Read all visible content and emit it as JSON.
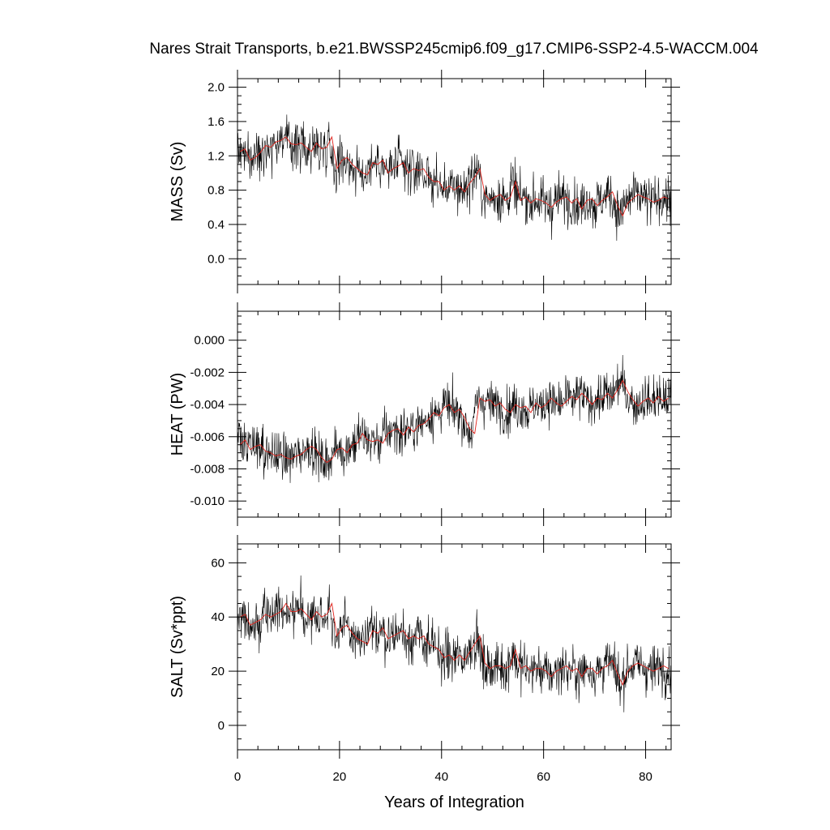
{
  "title": "Nares Strait Transports, b.e21.BWSSP245cmip6.f09_g17.CMIP6-SSP2-4.5-WACCM.004",
  "colors": {
    "raw": "#000000",
    "smooth": "#e0221b"
  },
  "chart_data": [
    {
      "type": "line",
      "id": "mass",
      "ylabel": "MASS (Sv)",
      "xlim": [
        0,
        85
      ],
      "ylim": [
        -0.3,
        2.1
      ],
      "x_ticks": [
        0,
        20,
        40,
        60,
        80
      ],
      "y_ticks": [
        0.0,
        0.4,
        0.8,
        1.2,
        1.6,
        2.0
      ],
      "y_tick_labels": [
        "0.0",
        "0.4",
        "0.8",
        "1.2",
        "1.6",
        "2.0"
      ],
      "series": [
        {
          "values": [
            1.25,
            1.28,
            1.15,
            1.18,
            1.24,
            1.32,
            1.3,
            1.36,
            1.38,
            1.42,
            1.34,
            1.33,
            1.35,
            1.3,
            1.25,
            1.35,
            1.28,
            1.3,
            1.42,
            1.05,
            1.15,
            1.18,
            1.1,
            1.05,
            1.0,
            0.98,
            1.12,
            1.1,
            1.15,
            1.0,
            1.05,
            1.08,
            1.12,
            1.0,
            1.05,
            1.03,
            1.05,
            0.95,
            0.9,
            0.9,
            0.8,
            0.85,
            0.8,
            0.85,
            0.78,
            0.88,
            0.95,
            1.05,
            0.75,
            0.68,
            0.72,
            0.75,
            0.68,
            0.72,
            0.9,
            0.68,
            0.72,
            0.65,
            0.7,
            0.68,
            0.65,
            0.6,
            0.66,
            0.7,
            0.72,
            0.65,
            0.7,
            0.58,
            0.68,
            0.7,
            0.62,
            0.68,
            0.72,
            0.78,
            0.62,
            0.5,
            0.65,
            0.7,
            0.75,
            0.72,
            0.7,
            0.66,
            0.68,
            0.72,
            0.7
          ]
        }
      ]
    },
    {
      "type": "line",
      "id": "heat",
      "ylabel": "HEAT (PW)",
      "xlim": [
        0,
        85
      ],
      "ylim": [
        -0.011,
        0.0018
      ],
      "x_ticks": [
        0,
        20,
        40,
        60,
        80
      ],
      "y_ticks": [
        -0.01,
        -0.008,
        -0.006,
        -0.004,
        -0.002,
        0.0
      ],
      "y_tick_labels": [
        "-0.010",
        "-0.008",
        "-0.006",
        "-0.004",
        "-0.002",
        "0.000"
      ],
      "series": [
        {
          "values": [
            -0.0065,
            -0.0062,
            -0.0068,
            -0.0066,
            -0.0065,
            -0.0069,
            -0.007,
            -0.0072,
            -0.0071,
            -0.0073,
            -0.0074,
            -0.0072,
            -0.0071,
            -0.0068,
            -0.0066,
            -0.0068,
            -0.0073,
            -0.0076,
            -0.0074,
            -0.0068,
            -0.0067,
            -0.007,
            -0.0065,
            -0.0064,
            -0.0058,
            -0.0062,
            -0.0063,
            -0.0062,
            -0.0064,
            -0.0058,
            -0.0056,
            -0.0055,
            -0.0059,
            -0.0054,
            -0.0057,
            -0.0053,
            -0.0052,
            -0.0049,
            -0.0045,
            -0.0047,
            -0.0042,
            -0.004,
            -0.0045,
            -0.0043,
            -0.0048,
            -0.0055,
            -0.0058,
            -0.0036,
            -0.0038,
            -0.0037,
            -0.0041,
            -0.0039,
            -0.0043,
            -0.0045,
            -0.004,
            -0.0042,
            -0.0041,
            -0.0045,
            -0.0039,
            -0.0042,
            -0.004,
            -0.0036,
            -0.0039,
            -0.0041,
            -0.0038,
            -0.0035,
            -0.0037,
            -0.0033,
            -0.0036,
            -0.004,
            -0.0036,
            -0.0037,
            -0.0033,
            -0.0036,
            -0.0031,
            -0.0025,
            -0.0032,
            -0.0037,
            -0.0041,
            -0.0038,
            -0.0036,
            -0.0039,
            -0.0035,
            -0.0038,
            -0.0036
          ]
        }
      ]
    },
    {
      "type": "line",
      "id": "salt",
      "xlabel": "Years of Integration",
      "ylabel": "SALT (Sv*ppt)",
      "xlim": [
        0,
        85
      ],
      "ylim": [
        -9,
        67
      ],
      "x_ticks": [
        0,
        20,
        40,
        60,
        80
      ],
      "x_tick_labels": [
        "0",
        "20",
        "40",
        "60",
        "80"
      ],
      "y_ticks": [
        0,
        20,
        40,
        60
      ],
      "y_tick_labels": [
        "0",
        "20",
        "40",
        "60"
      ],
      "series": [
        {
          "values": [
            40,
            41,
            37,
            38,
            39,
            41,
            40,
            41,
            42,
            45,
            42,
            42,
            43,
            41,
            39,
            42,
            40,
            41,
            45,
            33,
            36,
            37,
            34,
            32,
            31,
            30,
            35,
            34,
            36,
            32,
            33,
            34,
            35,
            32,
            33,
            32,
            33,
            30,
            29,
            28,
            25,
            26,
            24,
            26,
            24,
            27,
            30,
            33,
            23,
            21,
            22,
            22,
            21,
            22,
            28,
            21,
            22,
            20,
            21,
            21,
            20,
            18,
            20,
            21,
            22,
            20,
            21,
            18,
            21,
            21,
            19,
            21,
            22,
            24,
            19,
            15,
            20,
            22,
            23,
            22,
            21,
            20,
            21,
            22,
            21
          ]
        }
      ]
    }
  ]
}
